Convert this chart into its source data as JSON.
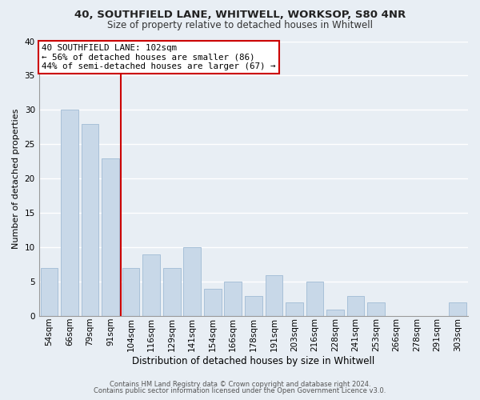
{
  "title1": "40, SOUTHFIELD LANE, WHITWELL, WORKSOP, S80 4NR",
  "title2": "Size of property relative to detached houses in Whitwell",
  "xlabel": "Distribution of detached houses by size in Whitwell",
  "ylabel": "Number of detached properties",
  "bar_labels": [
    "54sqm",
    "66sqm",
    "79sqm",
    "91sqm",
    "104sqm",
    "116sqm",
    "129sqm",
    "141sqm",
    "154sqm",
    "166sqm",
    "178sqm",
    "191sqm",
    "203sqm",
    "216sqm",
    "228sqm",
    "241sqm",
    "253sqm",
    "266sqm",
    "278sqm",
    "291sqm",
    "303sqm"
  ],
  "bar_values": [
    7,
    30,
    28,
    23,
    7,
    9,
    7,
    10,
    4,
    5,
    3,
    6,
    2,
    5,
    1,
    3,
    2,
    0,
    0,
    0,
    2
  ],
  "bar_color": "#c8d8e8",
  "bar_edge_color": "#a8c0d8",
  "highlight_line_color": "#cc0000",
  "highlight_index": 4,
  "annotation_title": "40 SOUTHFIELD LANE: 102sqm",
  "annotation_line1": "← 56% of detached houses are smaller (86)",
  "annotation_line2": "44% of semi-detached houses are larger (67) →",
  "annotation_box_color": "#ffffff",
  "annotation_box_edge": "#cc0000",
  "ylim": [
    0,
    40
  ],
  "yticks": [
    0,
    5,
    10,
    15,
    20,
    25,
    30,
    35,
    40
  ],
  "footer1": "Contains HM Land Registry data © Crown copyright and database right 2024.",
  "footer2": "Contains public sector information licensed under the Open Government Licence v3.0.",
  "bg_color": "#e8eef4",
  "grid_color": "#ffffff",
  "title1_fontsize": 9.5,
  "title2_fontsize": 8.5,
  "xlabel_fontsize": 8.5,
  "ylabel_fontsize": 8.0,
  "tick_fontsize": 7.5,
  "footer_fontsize": 6.0
}
